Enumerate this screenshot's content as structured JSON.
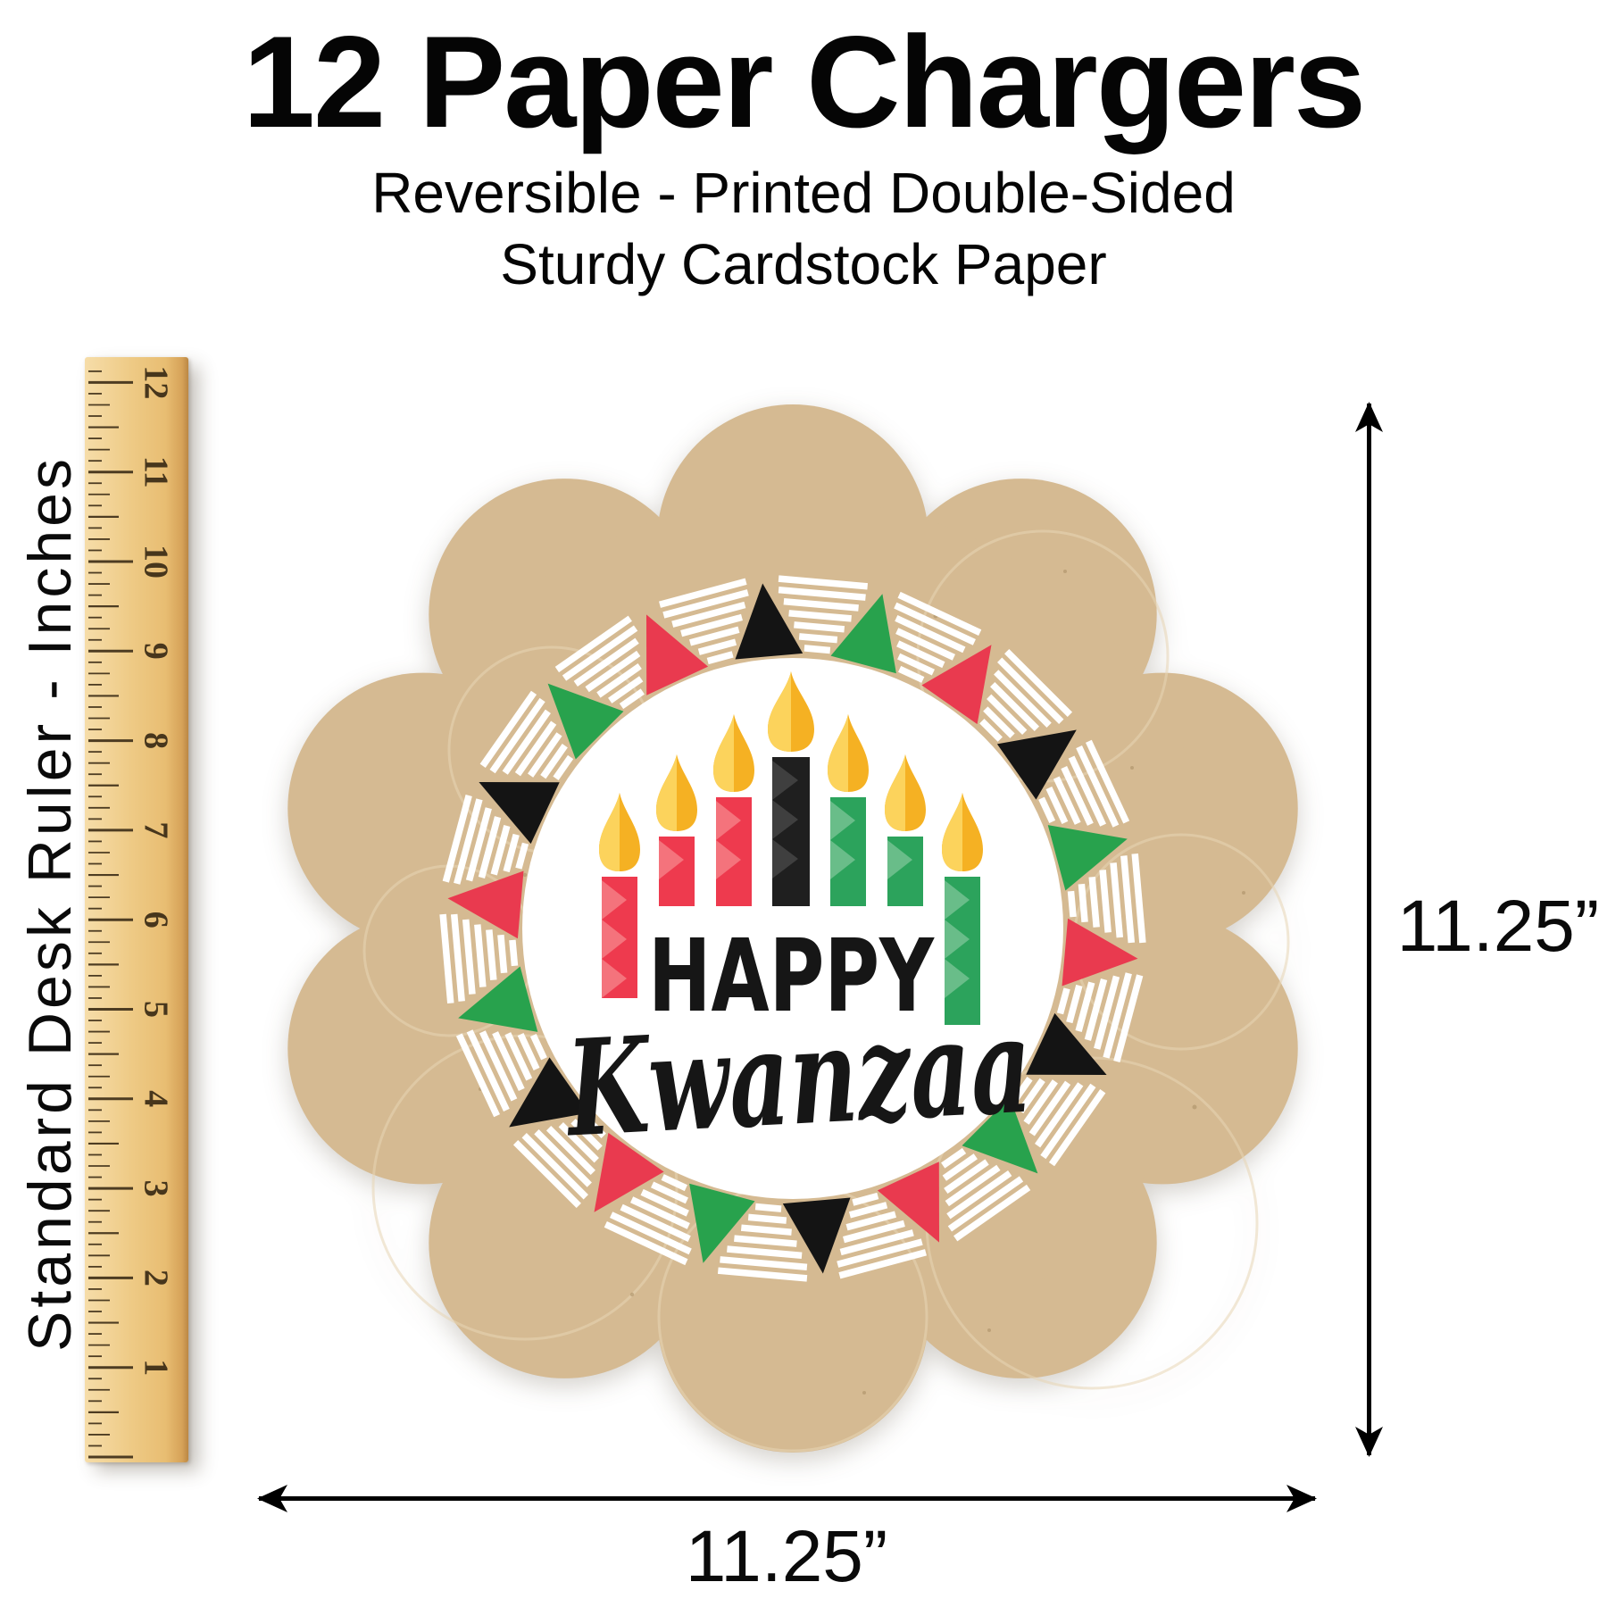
{
  "header": {
    "title": "12 Paper Chargers",
    "subtitle_line1": "Reversible - Printed Double-Sided",
    "subtitle_line2": "Sturdy Cardstock Paper"
  },
  "ruler": {
    "label": "Standard Desk Ruler - Inches",
    "numbers": [
      "1",
      "2",
      "3",
      "4",
      "5",
      "6",
      "7",
      "8",
      "9",
      "10",
      "11",
      "12"
    ]
  },
  "charger": {
    "greeting_line1": "HAPPY",
    "greeting_line2": "Kwanzaa",
    "colors": {
      "kraft": "#d5ba92",
      "swirl": "#e7d6b4",
      "center_white": "#ffffff",
      "triangle_red": "#e93a4f",
      "triangle_green": "#28a24d",
      "triangle_black": "#141414",
      "candle_red": "#ee3a4e",
      "candle_red_chevron": "#f4737c",
      "candle_green": "#2ca35c",
      "candle_green_chevron": "#69bd89",
      "candle_black": "#1f1f1f",
      "candle_black_chevron": "#3f3f3f",
      "flame": "#f5b123",
      "flame_light": "#fcd35c",
      "text_black": "#161616"
    }
  },
  "dimensions": {
    "height_label": "11.25”",
    "width_label": "11.25”"
  }
}
